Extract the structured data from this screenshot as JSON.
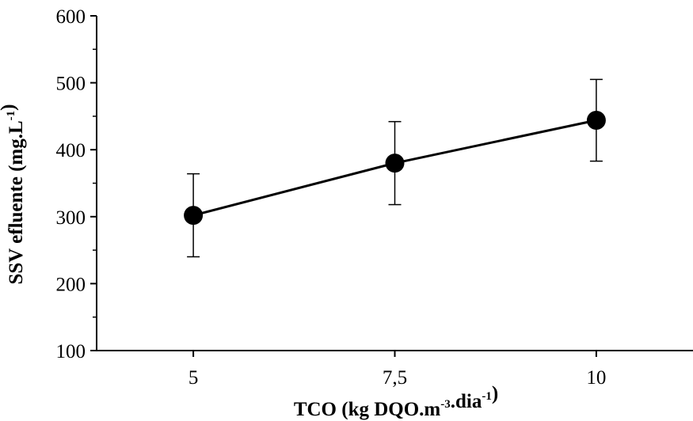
{
  "chart_data": {
    "type": "line",
    "title": "",
    "xlabel": {
      "parts": [
        {
          "text": "TCO (kg DQO.m",
          "sup": false
        },
        {
          "text": "-3",
          "sup": true
        },
        {
          "text": ".dia",
          "sup": false
        },
        {
          "text": "-1",
          "sup": true
        },
        {
          "text": ")",
          "sup": false
        }
      ]
    },
    "ylabel": {
      "parts": [
        {
          "text": "SSV efluente (mg.L",
          "sup": false
        },
        {
          "text": "-1",
          "sup": true
        },
        {
          "text": ")",
          "sup": false
        }
      ]
    },
    "categories": [
      "5",
      "7,5",
      "10"
    ],
    "x": [
      5,
      7.5,
      10
    ],
    "xlim": [
      3.8,
      11.2
    ],
    "ylim": [
      100,
      600
    ],
    "yticks": [
      100,
      200,
      300,
      400,
      500,
      600
    ],
    "grid": false,
    "series": [
      {
        "values": [
          302,
          380,
          444
        ],
        "error": [
          62,
          62,
          61
        ],
        "color": "#000000",
        "marker": "circle"
      }
    ]
  }
}
